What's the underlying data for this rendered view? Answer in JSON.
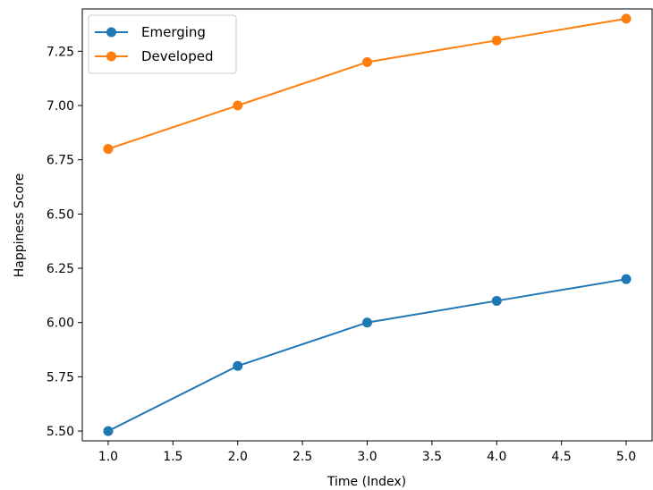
{
  "chart_data": {
    "type": "line",
    "title": "",
    "xlabel": "Time (Index)",
    "ylabel": "Happiness Score",
    "x": [
      1,
      2,
      3,
      4,
      5
    ],
    "xlim": [
      0.8,
      5.2
    ],
    "ylim": [
      5.455,
      7.445
    ],
    "xticks": [
      "1.0",
      "1.5",
      "2.0",
      "2.5",
      "3.0",
      "3.5",
      "4.0",
      "4.5",
      "5.0"
    ],
    "yticks": [
      "5.50",
      "5.75",
      "6.00",
      "6.25",
      "6.50",
      "6.75",
      "7.00",
      "7.25"
    ],
    "grid": false,
    "legend_position": "upper-left",
    "series": [
      {
        "name": "Emerging",
        "color": "#1f77b4",
        "marker": "circle",
        "values": [
          5.5,
          5.8,
          6.0,
          6.1,
          6.2
        ]
      },
      {
        "name": "Developed",
        "color": "#ff7f0e",
        "marker": "circle",
        "values": [
          6.8,
          7.0,
          7.2,
          7.3,
          7.4
        ]
      }
    ]
  }
}
